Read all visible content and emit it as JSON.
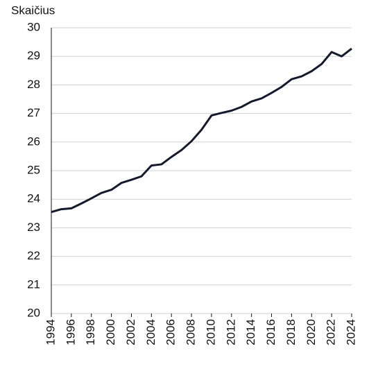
{
  "chart_data": {
    "type": "line",
    "y_label": "Skaičius",
    "x": [
      1994,
      1995,
      1996,
      1997,
      1998,
      1999,
      2000,
      2001,
      2002,
      2003,
      2004,
      2005,
      2006,
      2007,
      2008,
      2009,
      2010,
      2011,
      2012,
      2013,
      2014,
      2015,
      2016,
      2017,
      2018,
      2019,
      2020,
      2021,
      2022,
      2023,
      2024
    ],
    "values": [
      23.55,
      23.65,
      23.68,
      23.85,
      24.03,
      24.22,
      24.33,
      24.57,
      24.68,
      24.8,
      25.18,
      25.22,
      25.48,
      25.72,
      26.03,
      26.43,
      26.93,
      27.02,
      27.1,
      27.23,
      27.42,
      27.53,
      27.72,
      27.93,
      28.2,
      28.3,
      28.48,
      28.73,
      29.15,
      29.0,
      29.27
    ],
    "color": "#141a2e",
    "xlim": [
      1994,
      2024
    ],
    "xticks": [
      1994,
      1996,
      1998,
      2000,
      2002,
      2004,
      2006,
      2008,
      2010,
      2012,
      2014,
      2016,
      2018,
      2020,
      2022,
      2024
    ],
    "ylim": [
      20,
      30
    ],
    "yticks": [
      20,
      21,
      22,
      23,
      24,
      25,
      26,
      27,
      28,
      29,
      30
    ],
    "grid": true
  }
}
